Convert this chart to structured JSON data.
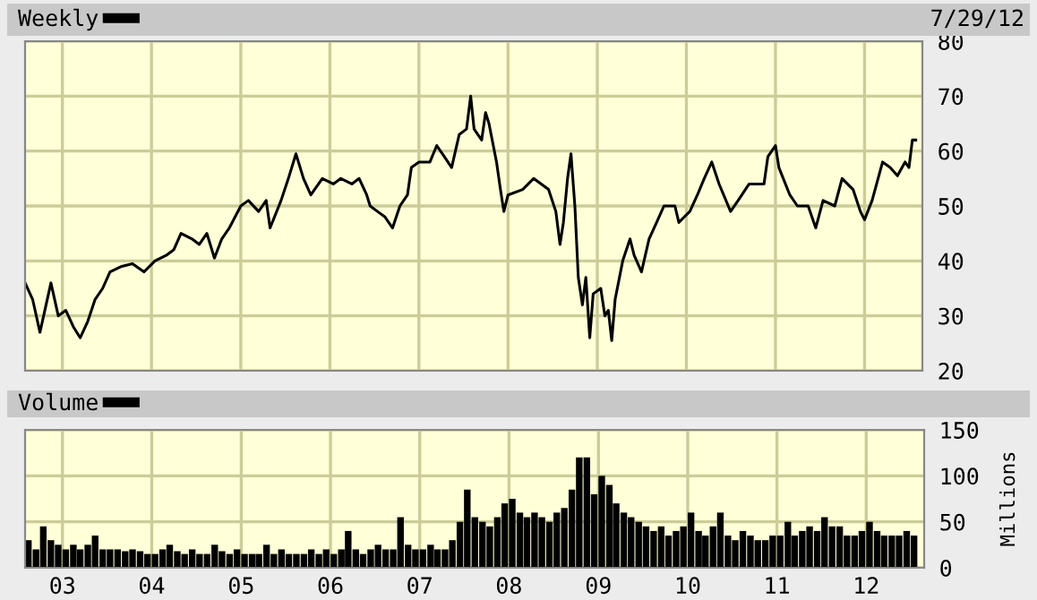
{
  "chart_data": [
    {
      "type": "line",
      "legend": "top left",
      "grid": true,
      "tick_labels": "y",
      "annotations": [
        "7/29/12"
      ],
      "series": [
        {
          "name": "Weekly",
          "color": "#000000",
          "x": [
            "2002-08-01",
            "2002-09-01",
            "2002-10-01",
            "2002-11-15",
            "2002-12-15",
            "2003-01-15",
            "2003-02-15",
            "2003-03-15",
            "2003-04-15",
            "2003-05-15",
            "2003-06-15",
            "2003-07-15",
            "2003-09-01",
            "2003-10-15",
            "2003-12-01",
            "2004-01-15",
            "2004-03-01",
            "2004-04-01",
            "2004-05-01",
            "2004-06-15",
            "2004-07-15",
            "2004-08-15",
            "2004-09-15",
            "2004-10-15",
            "2004-11-15",
            "2005-01-01",
            "2005-02-01",
            "2005-03-15",
            "2005-04-15",
            "2005-05-01",
            "2005-06-15",
            "2005-07-15",
            "2005-08-15",
            "2005-09-15",
            "2005-10-15",
            "2005-12-01",
            "2006-01-15",
            "2006-02-15",
            "2006-04-01",
            "2006-05-01",
            "2006-06-01",
            "2006-06-15",
            "2006-07-15",
            "2006-08-15",
            "2006-09-15",
            "2006-10-15",
            "2006-11-15",
            "2006-12-01",
            "2007-01-01",
            "2007-02-15",
            "2007-03-15",
            "2007-04-15",
            "2007-05-15",
            "2007-06-15",
            "2007-07-15",
            "2007-08-01",
            "2007-08-15",
            "2007-09-15",
            "2007-10-01",
            "2007-10-15",
            "2007-11-15",
            "2007-12-01",
            "2007-12-15",
            "2008-01-01",
            "2008-03-01",
            "2008-04-15",
            "2008-06-15",
            "2008-07-15",
            "2008-08-01",
            "2008-08-15",
            "2008-09-01",
            "2008-09-15",
            "2008-10-01",
            "2008-10-15",
            "2008-11-01",
            "2008-11-15",
            "2008-12-01",
            "2008-12-15",
            "2009-01-15",
            "2009-02-01",
            "2009-02-15",
            "2009-03-01",
            "2009-03-15",
            "2009-04-15",
            "2009-05-15",
            "2009-06-01",
            "2009-07-01",
            "2009-08-01",
            "2009-09-01",
            "2009-10-01",
            "2009-11-15",
            "2009-12-01",
            "2010-01-15",
            "2010-02-15",
            "2010-03-15",
            "2010-04-15",
            "2010-05-15",
            "2010-07-01",
            "2010-08-01",
            "2010-09-15",
            "2010-11-15",
            "2010-12-01",
            "2011-01-01",
            "2011-01-15",
            "2011-03-01",
            "2011-04-01",
            "2011-05-15",
            "2011-06-15",
            "2011-07-15",
            "2011-09-01",
            "2011-10-01",
            "2011-11-15",
            "2011-12-15",
            "2012-01-01",
            "2012-02-01",
            "2012-03-15",
            "2012-04-15",
            "2012-05-15",
            "2012-06-15",
            "2012-07-01",
            "2012-07-15",
            "2012-07-29"
          ],
          "values": [
            36,
            33,
            27,
            36,
            30,
            31,
            28,
            26,
            29,
            33,
            35,
            38,
            39,
            39.5,
            38,
            40,
            41,
            42,
            45,
            44,
            43,
            45,
            40.5,
            44,
            46,
            50,
            51,
            49,
            51,
            46,
            51,
            55,
            59.5,
            55,
            52,
            55,
            54,
            55,
            54,
            55,
            52,
            50,
            49,
            48,
            46,
            50,
            52,
            57,
            58,
            58,
            61,
            59,
            57,
            63,
            64,
            70,
            64,
            62,
            67,
            65,
            58,
            53,
            49,
            52,
            53,
            55,
            53,
            49,
            43,
            47,
            55,
            59.5,
            50,
            37,
            32,
            37,
            26,
            34,
            35,
            30,
            31,
            25.5,
            33,
            40,
            44,
            41,
            38,
            44,
            47,
            50,
            50,
            47,
            49,
            52,
            55,
            58,
            54,
            49,
            51,
            54,
            54,
            59,
            61,
            57,
            52,
            50,
            50,
            46,
            51,
            50,
            55,
            53,
            49,
            47.5,
            51,
            58,
            57,
            55.5,
            58,
            57,
            62,
            62
          ]
        }
      ],
      "xlim": [
        "2002-08-01",
        "2012-08-25"
      ],
      "xticks": [
        {
          "value": "2003-01-01",
          "label": null
        },
        {
          "value": "2004-01-01",
          "label": null
        },
        {
          "value": "2005-01-01",
          "label": null
        },
        {
          "value": "2006-01-01",
          "label": null
        },
        {
          "value": "2007-01-01",
          "label": null
        },
        {
          "value": "2008-01-01",
          "label": null
        },
        {
          "value": "2009-01-01",
          "label": null
        },
        {
          "value": "2010-01-01",
          "label": null
        },
        {
          "value": "2011-01-01",
          "label": null
        },
        {
          "value": "2012-01-01",
          "label": null
        }
      ],
      "ylim": [
        20,
        80
      ],
      "yticks": [
        20,
        30,
        40,
        50,
        60,
        70,
        80
      ]
    },
    {
      "type": "bar",
      "legend": "top left",
      "grid": true,
      "ylabel": "Millions",
      "series": [
        {
          "name": "Volume",
          "color": "#000000",
          "x": [
            "2002-08",
            "2002-09",
            "2002-10",
            "2002-11",
            "2002-12",
            "2003-01",
            "2003-02",
            "2003-03",
            "2003-04",
            "2003-05",
            "2003-06",
            "2003-07",
            "2003-08",
            "2003-09",
            "2003-10",
            "2003-11",
            "2003-12",
            "2004-01",
            "2004-02",
            "2004-03",
            "2004-04",
            "2004-05",
            "2004-06",
            "2004-07",
            "2004-08",
            "2004-09",
            "2004-10",
            "2004-11",
            "2004-12",
            "2005-01",
            "2005-02",
            "2005-03",
            "2005-04",
            "2005-05",
            "2005-06",
            "2005-07",
            "2005-08",
            "2005-09",
            "2005-10",
            "2005-11",
            "2005-12",
            "2006-01",
            "2006-02",
            "2006-03",
            "2006-04",
            "2006-05",
            "2006-06",
            "2006-07",
            "2006-08",
            "2006-09",
            "2006-10",
            "2006-11",
            "2006-12",
            "2007-01",
            "2007-02",
            "2007-03",
            "2007-04",
            "2007-05",
            "2007-06",
            "2007-07",
            "2007-08",
            "2007-09",
            "2007-10",
            "2007-11",
            "2007-12",
            "2008-01",
            "2008-02",
            "2008-03",
            "2008-04",
            "2008-05",
            "2008-06",
            "2008-07",
            "2008-08",
            "2008-09",
            "2008-10",
            "2008-11",
            "2008-12",
            "2009-01",
            "2009-02",
            "2009-03",
            "2009-04",
            "2009-05",
            "2009-06",
            "2009-07",
            "2009-08",
            "2009-09",
            "2009-10",
            "2009-11",
            "2009-12",
            "2010-01",
            "2010-02",
            "2010-03",
            "2010-04",
            "2010-05",
            "2010-06",
            "2010-07",
            "2010-08",
            "2010-09",
            "2010-10",
            "2010-11",
            "2010-12",
            "2011-01",
            "2011-02",
            "2011-03",
            "2011-04",
            "2011-05",
            "2011-06",
            "2011-07",
            "2011-08",
            "2011-09",
            "2011-10",
            "2011-11",
            "2011-12",
            "2012-01",
            "2012-02",
            "2012-03",
            "2012-04",
            "2012-05",
            "2012-06",
            "2012-07"
          ],
          "values": [
            30,
            20,
            45,
            30,
            25,
            20,
            25,
            20,
            25,
            35,
            20,
            20,
            20,
            18,
            20,
            18,
            15,
            15,
            20,
            25,
            18,
            15,
            20,
            15,
            15,
            25,
            18,
            15,
            20,
            15,
            15,
            15,
            25,
            15,
            20,
            15,
            15,
            15,
            20,
            15,
            20,
            15,
            20,
            40,
            20,
            15,
            20,
            25,
            20,
            20,
            55,
            25,
            20,
            20,
            25,
            20,
            20,
            30,
            50,
            85,
            55,
            50,
            45,
            55,
            70,
            75,
            60,
            55,
            60,
            55,
            50,
            60,
            65,
            85,
            120,
            120,
            80,
            100,
            90,
            70,
            60,
            55,
            50,
            45,
            40,
            45,
            35,
            40,
            45,
            60,
            40,
            35,
            45,
            60,
            35,
            30,
            40,
            35,
            30,
            30,
            35,
            35,
            50,
            35,
            40,
            45,
            40,
            55,
            45,
            45,
            35,
            35,
            40,
            50,
            40,
            35,
            35,
            35,
            40,
            35
          ]
        }
      ],
      "xlim": [
        "2002-08-01",
        "2012-08-25"
      ],
      "xticks": [
        {
          "value": "2003-01-01",
          "label": "03"
        },
        {
          "value": "2004-01-01",
          "label": "04"
        },
        {
          "value": "2005-01-01",
          "label": "05"
        },
        {
          "value": "2006-01-01",
          "label": "06"
        },
        {
          "value": "2007-01-01",
          "label": "07"
        },
        {
          "value": "2008-01-01",
          "label": "08"
        },
        {
          "value": "2009-01-01",
          "label": "09"
        },
        {
          "value": "2010-01-01",
          "label": "10"
        },
        {
          "value": "2011-01-01",
          "label": "11"
        },
        {
          "value": "2012-01-01",
          "label": "12"
        }
      ],
      "ylim": [
        0,
        150
      ],
      "yticks": [
        0,
        50,
        100,
        150
      ]
    }
  ]
}
